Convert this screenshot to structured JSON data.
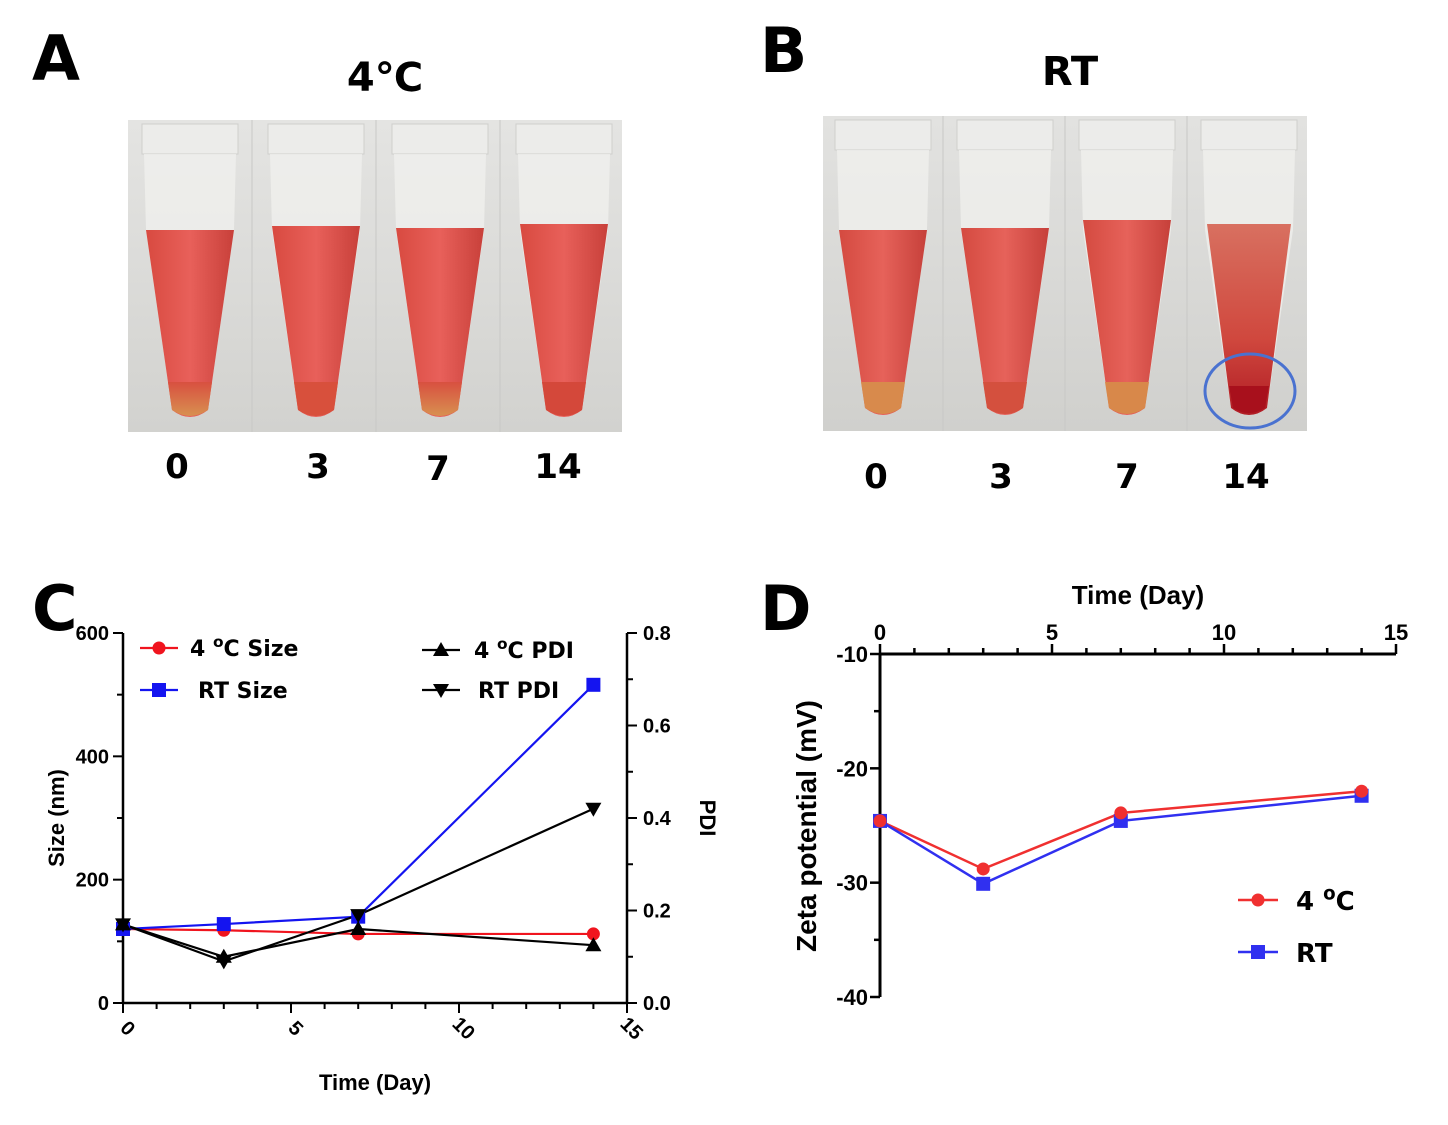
{
  "panels": {
    "A": {
      "letter": "A",
      "title": "4℃",
      "tube_labels": [
        "0",
        "3",
        "7",
        "14"
      ]
    },
    "B": {
      "letter": "B",
      "title": "RT",
      "tube_labels": [
        "0",
        "3",
        "7",
        "14"
      ]
    },
    "C": {
      "letter": "C"
    },
    "D": {
      "letter": "D"
    }
  },
  "colors": {
    "red": "#f0141e",
    "blue": "#1414f0",
    "black": "#000000",
    "lineRed": "#f03030",
    "lineBlue": "#3030f0"
  },
  "chart_data": [
    {
      "id": "C",
      "type": "line",
      "xlabel": "Time (Day)",
      "ylabel": "Size (nm)",
      "y2label": "PDI",
      "xlim": [
        0,
        15
      ],
      "ylim": [
        0,
        600
      ],
      "y2lim": [
        0,
        0.8
      ],
      "xticks": [
        "0",
        "5",
        "10",
        "15"
      ],
      "yticks": [
        "0",
        "200",
        "400",
        "600"
      ],
      "y2ticks": [
        "0.0",
        "0.2",
        "0.4",
        "0.6",
        "0.8"
      ],
      "legend": [
        "4 °C Size",
        "RT Size",
        "4 °C PDI",
        "RT PDI"
      ],
      "series": [
        {
          "name": "4 °C Size",
          "axis": "left",
          "x": [
            0,
            3,
            7,
            14
          ],
          "values": [
            120,
            118,
            112,
            112
          ]
        },
        {
          "name": "RT Size",
          "axis": "left",
          "x": [
            0,
            3,
            7,
            14
          ],
          "values": [
            120,
            128,
            140,
            516
          ]
        },
        {
          "name": "4 °C PDI",
          "axis": "right",
          "x": [
            0,
            3,
            7,
            14
          ],
          "values": [
            0.17,
            0.1,
            0.16,
            0.125
          ]
        },
        {
          "name": "RT PDI",
          "axis": "right",
          "x": [
            0,
            3,
            7,
            14
          ],
          "values": [
            0.17,
            0.09,
            0.19,
            0.42
          ]
        }
      ]
    },
    {
      "id": "D",
      "type": "line",
      "xlabel": "Time (Day)",
      "ylabel": "Zeta potential (mV)",
      "xlim": [
        0,
        15
      ],
      "ylim": [
        -40,
        -10
      ],
      "xticks": [
        "0",
        "5",
        "10",
        "15"
      ],
      "yticks": [
        "-10",
        "-20",
        "-30",
        "-40"
      ],
      "legend": [
        "4 °C",
        "RT"
      ],
      "series": [
        {
          "name": "4 °C",
          "x": [
            0,
            3,
            7,
            14
          ],
          "values": [
            -24.6,
            -28.8,
            -23.9,
            -22.0
          ]
        },
        {
          "name": "RT",
          "x": [
            0,
            3,
            7,
            14
          ],
          "values": [
            -24.6,
            -30.1,
            -24.6,
            -22.4
          ]
        }
      ]
    }
  ]
}
